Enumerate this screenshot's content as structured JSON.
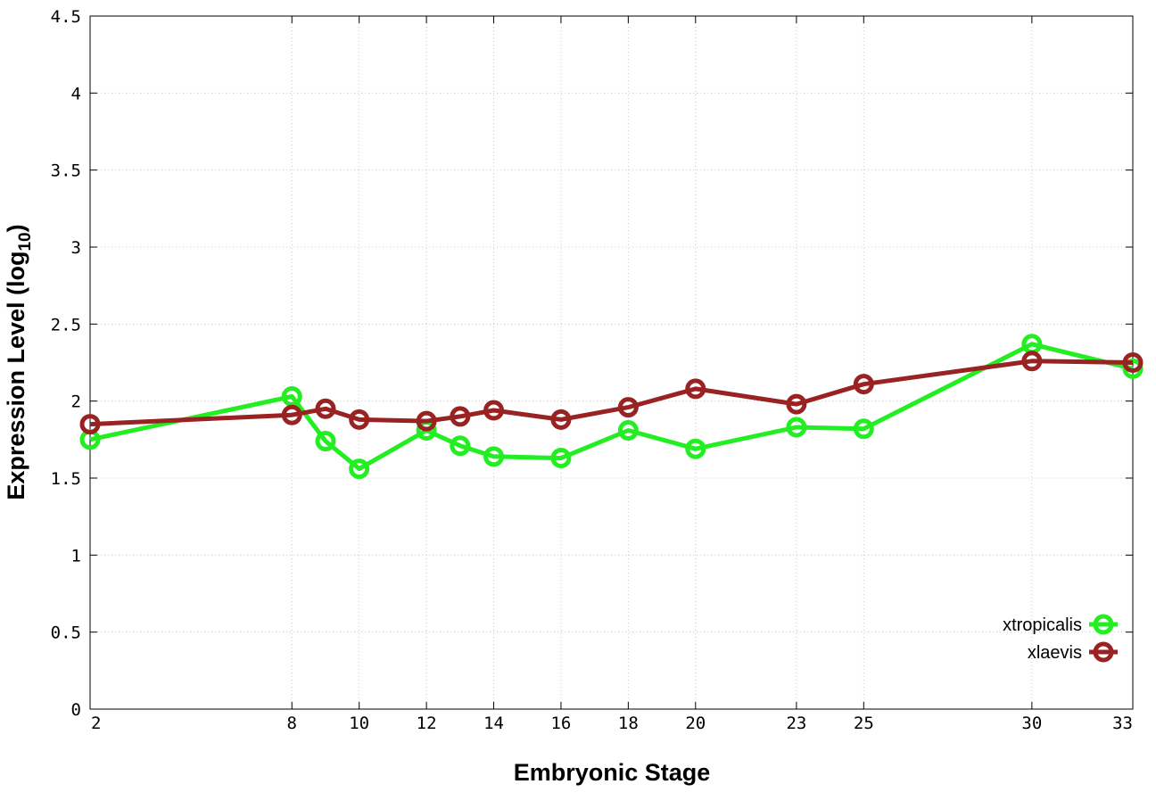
{
  "chart_data": {
    "type": "line",
    "xlabel": "Embryonic Stage",
    "ylabel": "Expression Level (log",
    "ylabel_sub": "10",
    "ylabel_close": ")",
    "x": [
      2,
      8,
      9,
      10,
      12,
      13,
      14,
      16,
      18,
      20,
      23,
      25,
      30,
      33
    ],
    "x_ticks": [
      2,
      8,
      10,
      12,
      14,
      16,
      18,
      20,
      23,
      25,
      30,
      33
    ],
    "x_tick_labels": [
      "2",
      "8",
      "10",
      "12",
      "14",
      "16",
      "18",
      "20",
      "23",
      "25",
      "30",
      "33"
    ],
    "xlim": [
      2,
      33
    ],
    "y_ticks": [
      0,
      0.5,
      1,
      1.5,
      2,
      2.5,
      3,
      3.5,
      4,
      4.5
    ],
    "y_tick_labels": [
      "0",
      "0.5",
      "1",
      "1.5",
      "2",
      "2.5",
      "3",
      "3.5",
      "4",
      "4.5"
    ],
    "ylim": [
      0,
      4.5
    ],
    "grid": true,
    "legend_position": "bottom-right",
    "series": [
      {
        "name": "xtropicalis",
        "color": "#22ee22",
        "values": [
          1.75,
          2.03,
          1.74,
          1.56,
          1.81,
          1.71,
          1.64,
          1.63,
          1.81,
          1.69,
          1.83,
          1.82,
          2.37,
          2.21
        ]
      },
      {
        "name": "xlaevis",
        "color": "#992222",
        "values": [
          1.85,
          1.91,
          1.95,
          1.88,
          1.87,
          1.9,
          1.94,
          1.88,
          1.96,
          2.08,
          1.98,
          2.11,
          2.26,
          2.25
        ]
      }
    ]
  }
}
